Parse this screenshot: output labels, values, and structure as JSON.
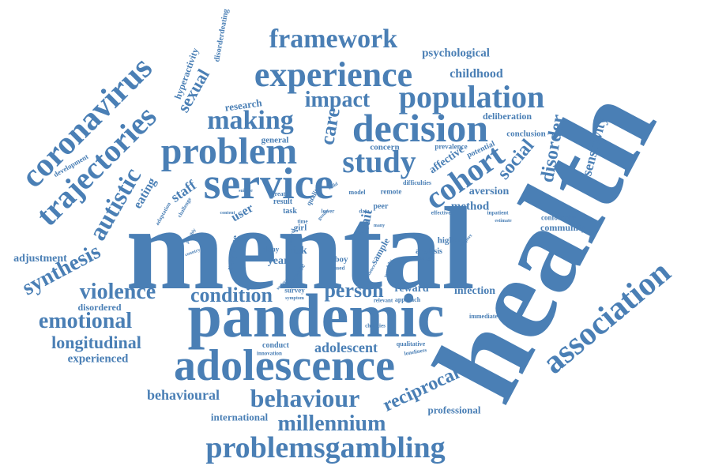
{
  "color": "#4a7fb5",
  "words": [
    {
      "text": "health"
    },
    {
      "text": "mental"
    },
    {
      "text": "pandemic"
    },
    {
      "text": "adolescence"
    },
    {
      "text": "service"
    },
    {
      "text": "problem"
    },
    {
      "text": "study"
    },
    {
      "text": "decision"
    },
    {
      "text": "experience"
    },
    {
      "text": "population"
    },
    {
      "text": "coronavirus"
    },
    {
      "text": "trajectories"
    },
    {
      "text": "framework"
    },
    {
      "text": "making"
    },
    {
      "text": "impact"
    },
    {
      "text": "cohort"
    },
    {
      "text": "association"
    },
    {
      "text": "autistic"
    },
    {
      "text": "synthesis"
    },
    {
      "text": "violence"
    },
    {
      "text": "emotional"
    },
    {
      "text": "longitudinal"
    },
    {
      "text": "behaviour"
    },
    {
      "text": "problemsgambling"
    },
    {
      "text": "millennium"
    },
    {
      "text": "condition"
    },
    {
      "text": "person"
    },
    {
      "text": "reciprocal"
    },
    {
      "text": "adolescent"
    },
    {
      "text": "sexual"
    },
    {
      "text": "care"
    },
    {
      "text": "social"
    },
    {
      "text": "disorder"
    },
    {
      "text": "sensitivity"
    },
    {
      "text": "childhood"
    },
    {
      "text": "psychological"
    },
    {
      "text": "behavioural"
    },
    {
      "text": "professional"
    },
    {
      "text": "international"
    },
    {
      "text": "experienced"
    },
    {
      "text": "adjustment"
    },
    {
      "text": "disordered"
    },
    {
      "text": "method"
    },
    {
      "text": "aversion"
    },
    {
      "text": "reward"
    },
    {
      "text": "infection"
    },
    {
      "text": "community"
    },
    {
      "text": "confounder"
    },
    {
      "text": "conclusion"
    },
    {
      "text": "deliberation"
    },
    {
      "text": "research"
    },
    {
      "text": "hyperactivity"
    },
    {
      "text": "disorderdeating"
    },
    {
      "text": "development"
    },
    {
      "text": "eating"
    },
    {
      "text": "staff"
    },
    {
      "text": "affective"
    },
    {
      "text": "potential"
    },
    {
      "text": "concern"
    },
    {
      "text": "general"
    },
    {
      "text": "prevalence"
    },
    {
      "text": "difficulties"
    },
    {
      "text": "remote"
    },
    {
      "text": "user"
    },
    {
      "text": "response"
    },
    {
      "text": "year"
    },
    {
      "text": "risk"
    },
    {
      "text": "delay"
    },
    {
      "text": "girl"
    },
    {
      "text": "boy"
    },
    {
      "text": "trait"
    },
    {
      "text": "sample"
    },
    {
      "text": "increase"
    },
    {
      "text": "survey"
    },
    {
      "text": "conduct"
    },
    {
      "text": "innovation"
    },
    {
      "text": "charities"
    },
    {
      "text": "qualitative"
    },
    {
      "text": "loneliness"
    },
    {
      "text": "relevant"
    },
    {
      "text": "approach"
    },
    {
      "text": "immediate"
    },
    {
      "text": "higher"
    },
    {
      "text": "analysis"
    },
    {
      "text": "peer"
    },
    {
      "text": "data"
    },
    {
      "text": "task"
    },
    {
      "text": "result"
    },
    {
      "text": "greater"
    },
    {
      "text": "quality"
    },
    {
      "text": "model"
    },
    {
      "text": "adaptation"
    },
    {
      "text": "challenge"
    },
    {
      "text": "suicide"
    },
    {
      "text": "content"
    },
    {
      "text": "control"
    },
    {
      "text": "effective"
    },
    {
      "text": "inpatient"
    },
    {
      "text": "estimate"
    },
    {
      "text": "change"
    },
    {
      "text": "support"
    },
    {
      "text": "based"
    },
    {
      "text": "symptom"
    },
    {
      "text": "societal"
    },
    {
      "text": "lower"
    },
    {
      "text": "time"
    },
    {
      "text": "many"
    },
    {
      "text": "evidence"
    },
    {
      "text": "gender"
    },
    {
      "text": "possibly"
    },
    {
      "text": "country"
    },
    {
      "text": "child"
    },
    {
      "text": "weekly"
    }
  ]
}
